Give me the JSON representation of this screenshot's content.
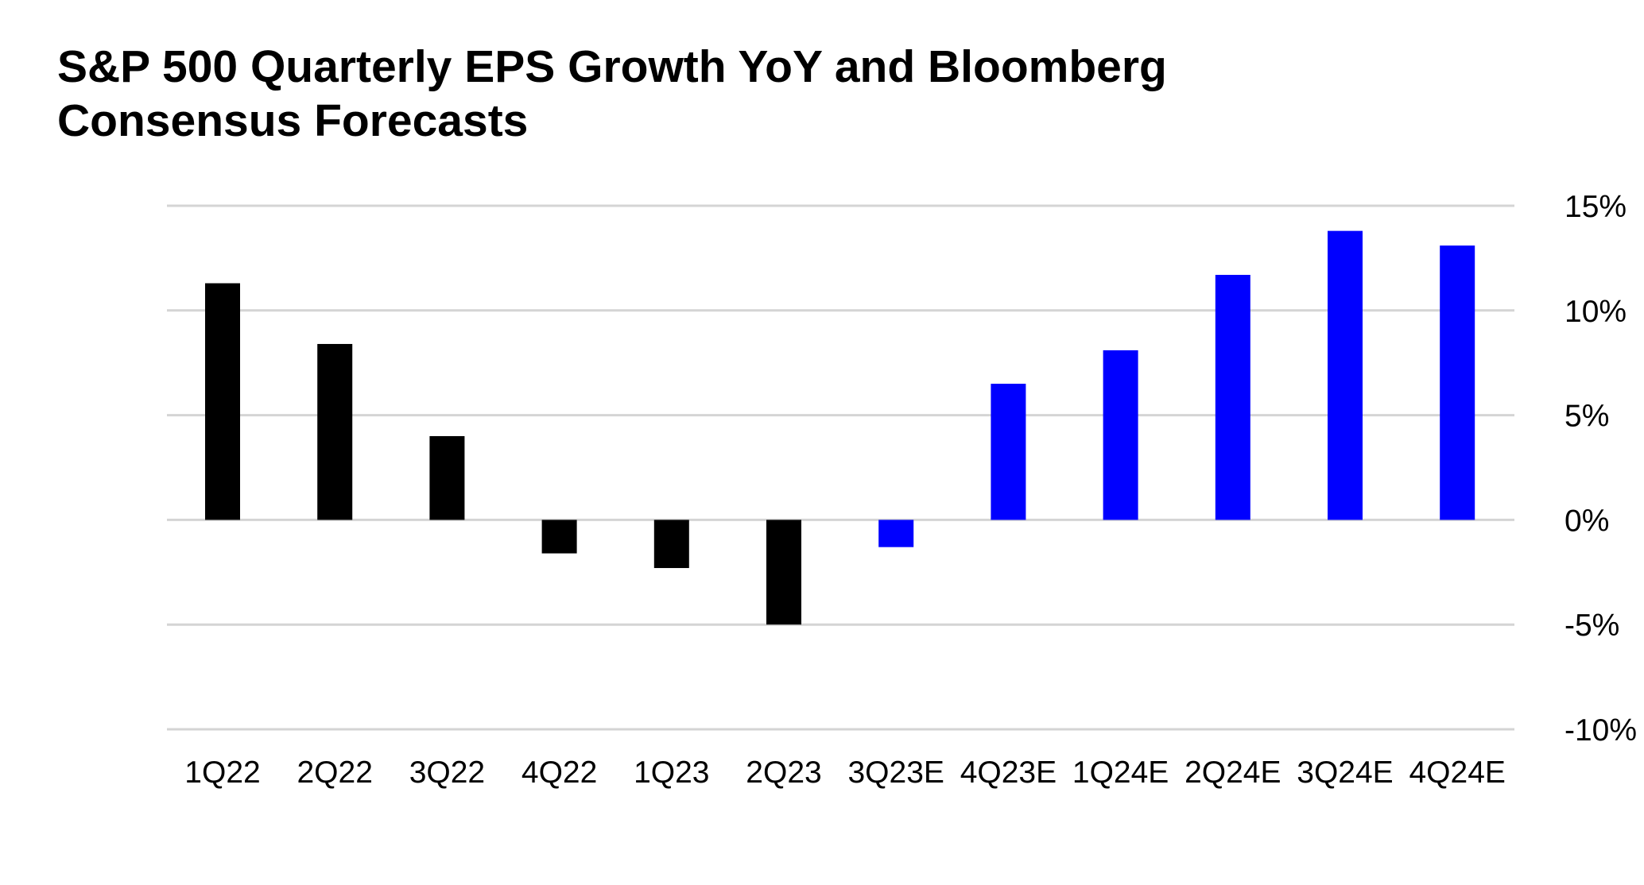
{
  "title": "S&P 500 Quarterly EPS Growth YoY and Bloomberg Consensus Forecasts",
  "chart_data": {
    "type": "bar",
    "title": "S&P 500 Quarterly EPS Growth YoY and Bloomberg Consensus Forecasts",
    "xlabel": "",
    "ylabel": "",
    "categories": [
      "1Q22",
      "2Q22",
      "3Q22",
      "4Q22",
      "1Q23",
      "2Q23",
      "3Q23E",
      "4Q23E",
      "1Q24E",
      "2Q24E",
      "3Q24E",
      "4Q24E"
    ],
    "values": [
      11.3,
      8.4,
      4.0,
      -1.6,
      -2.3,
      -5.0,
      -1.3,
      6.5,
      8.1,
      11.7,
      13.8,
      13.1
    ],
    "bar_colors": [
      "#000000",
      "#000000",
      "#000000",
      "#000000",
      "#000000",
      "#000000",
      "#0000ff",
      "#0000ff",
      "#0000ff",
      "#0000ff",
      "#0000ff",
      "#0000ff"
    ],
    "ylim": [
      -10,
      15
    ],
    "yticks": [
      15,
      10,
      5,
      0,
      -5,
      -10
    ],
    "ytick_labels": [
      "15%",
      "10%",
      "5%",
      "0%",
      "-5%",
      "-10%"
    ],
    "y_axis_position": "right",
    "grid": true,
    "legend": false,
    "colors": {
      "actual": "#000000",
      "forecast": "#0000ff",
      "grid": "#d4d4d4"
    }
  }
}
